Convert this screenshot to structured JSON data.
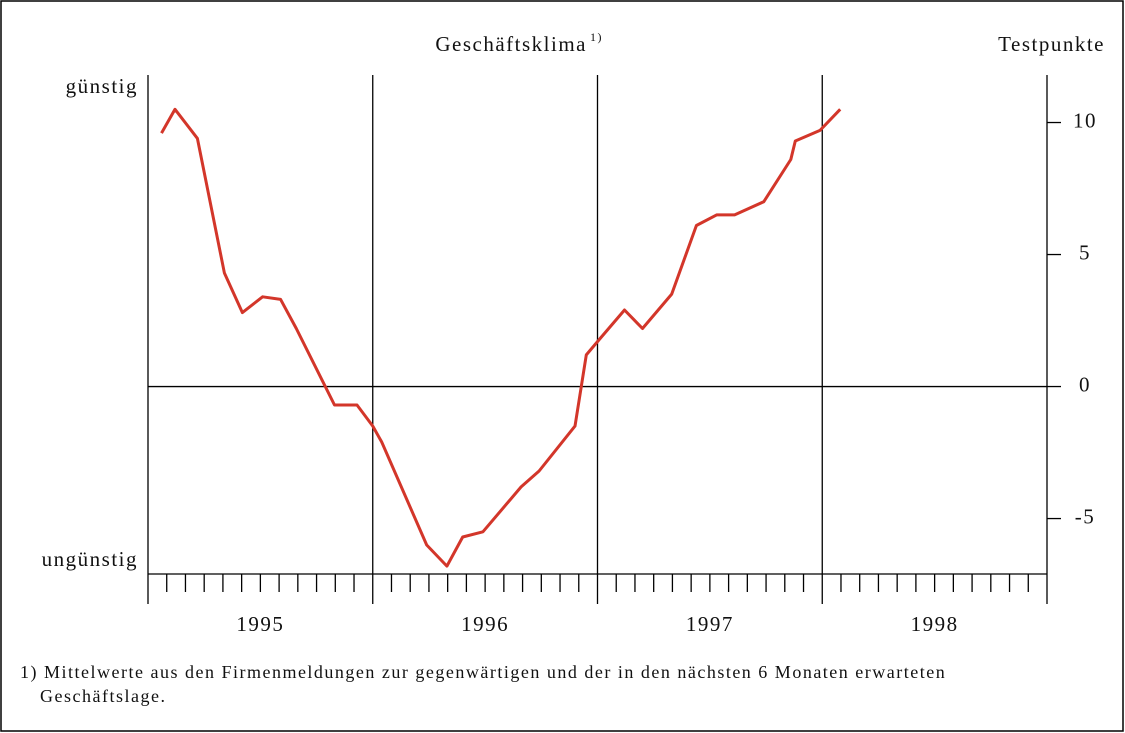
{
  "chart_data": {
    "type": "line",
    "title": "Geschäftsklima",
    "title_note": "1)",
    "y_axis_label": "Testpunkte",
    "upper_label": "günstig",
    "lower_label": "ungünstig",
    "categories": [
      "1995",
      "1996",
      "1997",
      "1998"
    ],
    "xlim": [
      1995,
      1999
    ],
    "ylim": [
      -7.1,
      11.8
    ],
    "yticks": [
      -5,
      0,
      5,
      10
    ],
    "series": [
      {
        "color": "#d3362a",
        "x": [
          1995.06,
          1995.12,
          1995.22,
          1995.34,
          1995.42,
          1995.51,
          1995.59,
          1995.66,
          1995.83,
          1995.93,
          1996.0,
          1996.04,
          1996.24,
          1996.33,
          1996.4,
          1996.49,
          1996.66,
          1996.74,
          1996.9,
          1996.95,
          1997.01,
          1997.12,
          1997.2,
          1997.33,
          1997.44,
          1997.53,
          1997.61,
          1997.74,
          1997.86,
          1997.88,
          1997.99,
          1998.08
        ],
        "values": [
          9.6,
          10.5,
          9.4,
          4.3,
          2.8,
          3.4,
          3.3,
          2.2,
          -0.7,
          -0.7,
          -1.5,
          -2.1,
          -6.0,
          -6.8,
          -5.7,
          -5.5,
          -3.8,
          -3.2,
          -1.5,
          1.2,
          1.8,
          2.9,
          2.2,
          3.5,
          6.1,
          6.5,
          6.5,
          7.0,
          8.6,
          9.3,
          9.7,
          10.5
        ]
      }
    ],
    "footnote": [
      "1) Mittelwerte aus den Firmenmeldungen zur gegenwärtigen und der in den nächsten 6 Monaten erwarteten",
      "Geschäftslage."
    ]
  }
}
